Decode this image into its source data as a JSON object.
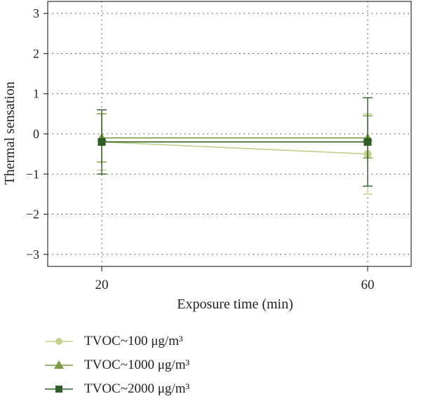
{
  "chart_data": {
    "type": "line",
    "xlabel": "Exposure time (min)",
    "ylabel": "Thermal sensation",
    "x_categories": [
      "20",
      "60"
    ],
    "ylim": [
      -3.3,
      3.3
    ],
    "yticks": [
      3,
      2,
      1,
      0,
      -1,
      -2,
      -3
    ],
    "ytick_labels": [
      "3",
      "2",
      "1",
      "0",
      "−1",
      "−2",
      "−3"
    ],
    "grid": "dotted",
    "legend_placement": "bottom",
    "series": [
      {
        "name": "TVOC~100 μg/m³",
        "marker": "circle",
        "color": "#c2d08c",
        "values": [
          -0.2,
          -0.5
        ],
        "err_upper": [
          0.5,
          0.5
        ],
        "err_lower": [
          -0.9,
          -1.5
        ]
      },
      {
        "name": "TVOC~1000 μg/m³",
        "marker": "triangle",
        "color": "#7f9a45",
        "values": [
          -0.1,
          -0.1
        ],
        "err_upper": [
          0.5,
          0.45
        ],
        "err_lower": [
          -0.7,
          -0.6
        ]
      },
      {
        "name": "TVOC~2000 μg/m³",
        "marker": "square",
        "color": "#2f5e28",
        "values": [
          -0.2,
          -0.2
        ],
        "err_upper": [
          0.6,
          0.9
        ],
        "err_lower": [
          -1.0,
          -1.3
        ]
      }
    ]
  }
}
